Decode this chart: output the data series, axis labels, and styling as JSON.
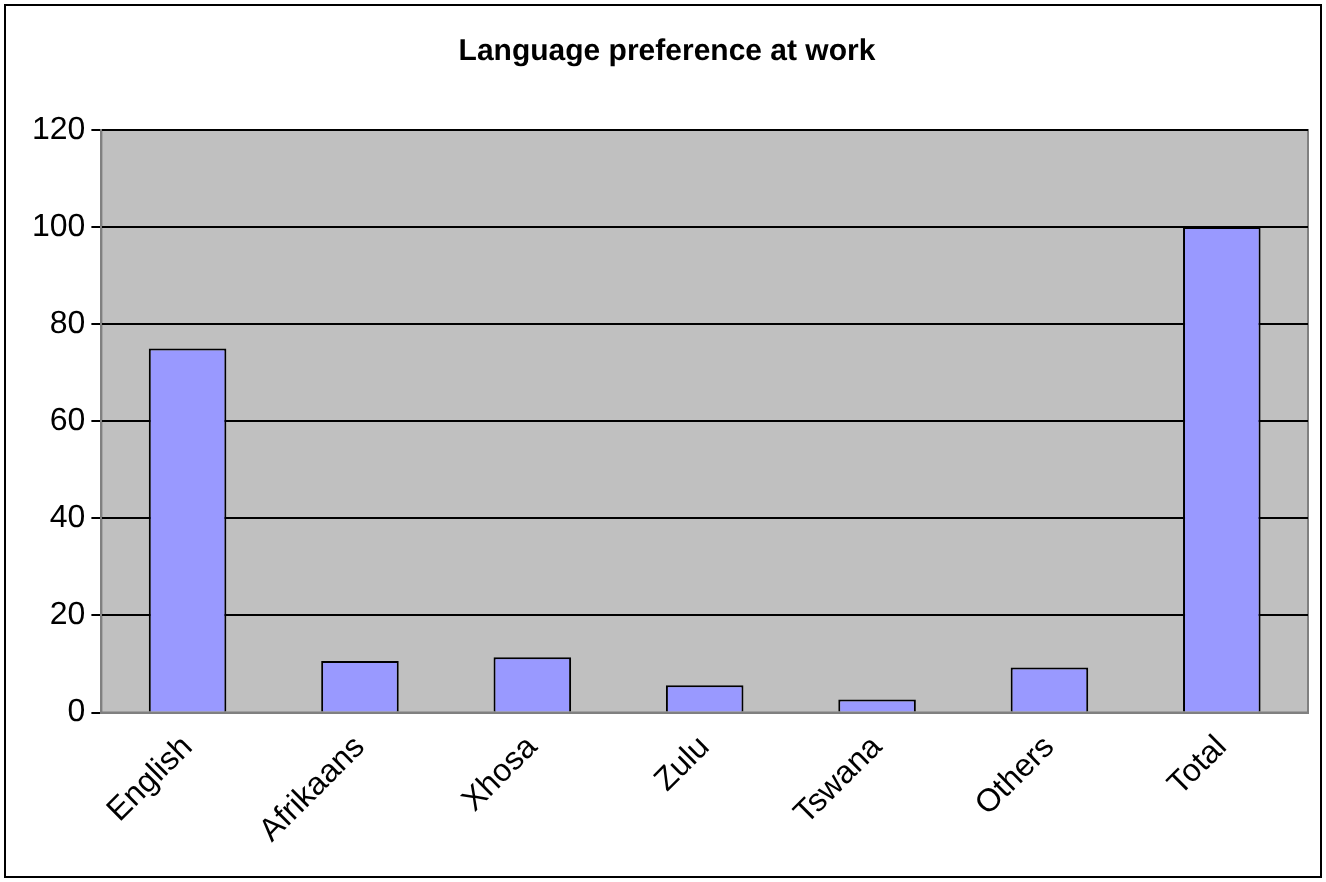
{
  "chart_data": {
    "type": "bar",
    "title": "Language preference at work",
    "categories": [
      "English",
      "Afrikaans",
      "Xhosa",
      "Zulu",
      "Tswana",
      "Others",
      "Total"
    ],
    "values": [
      75,
      10.6,
      11.4,
      5.6,
      2.7,
      9.3,
      100
    ],
    "color": "#9999ff",
    "ylim": [
      0,
      120
    ],
    "yticks": [
      0,
      20,
      40,
      60,
      80,
      100,
      120
    ],
    "grid": "y",
    "legend": false
  }
}
